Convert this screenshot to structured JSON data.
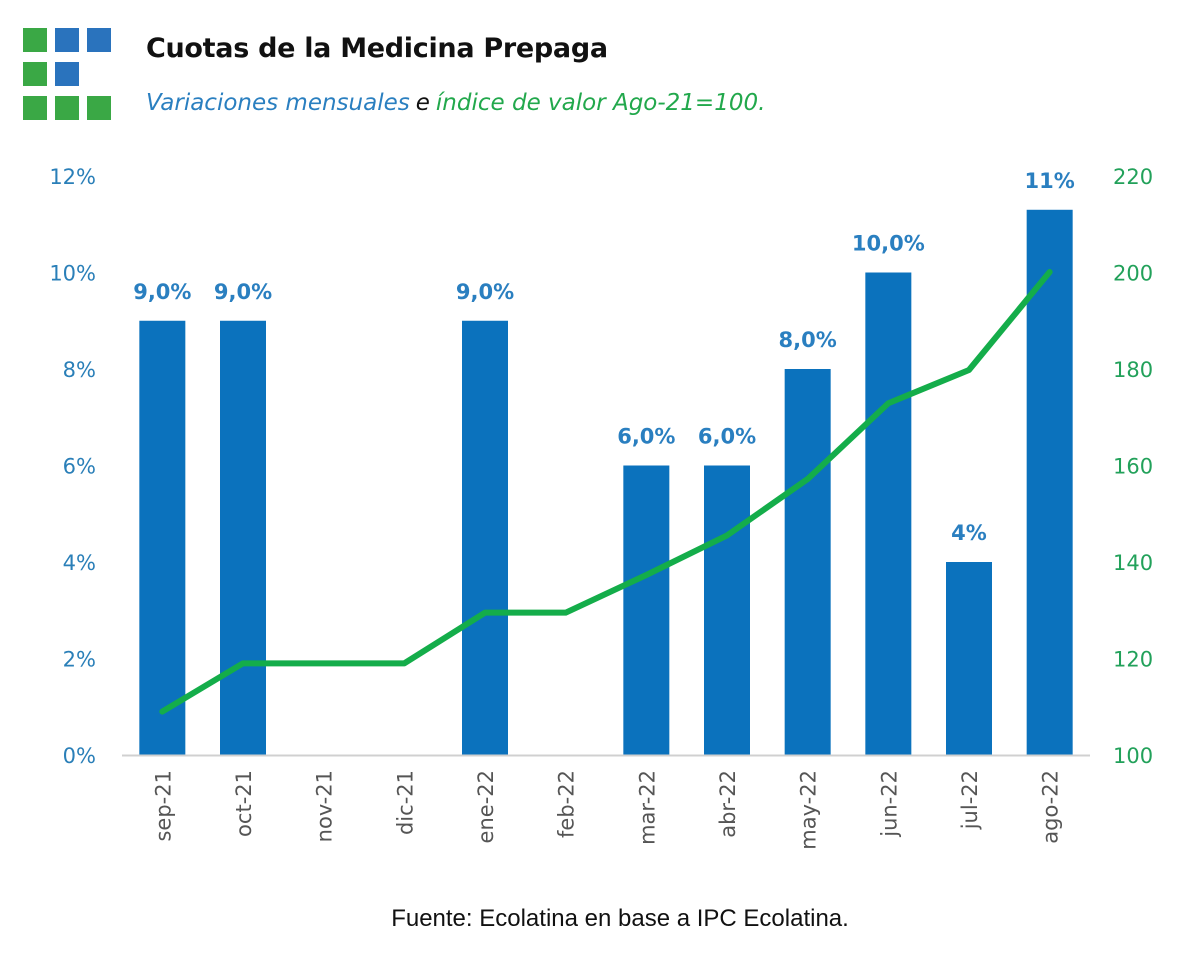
{
  "header": {
    "title": "Cuotas de la Medicina Prepaga",
    "subtitle_part1": "Variaciones mensuales",
    "subtitle_conj": "e",
    "subtitle_part2": "índice de valor Ago-21=100."
  },
  "logo": {
    "grid": [
      [
        "green",
        "blue",
        "blue"
      ],
      [
        "green",
        "blue",
        "none"
      ],
      [
        "green",
        "green",
        "green"
      ]
    ],
    "colors": {
      "green": "#3aa845",
      "blue": "#2a73bd"
    }
  },
  "footer": {
    "source": "Fuente: Ecolatina en base a IPC Ecolatina."
  },
  "colors": {
    "bar": "#0b72bd",
    "line": "#14ad4a",
    "left_axis_text": "#2a7fb8",
    "right_axis_text": "#22a15a",
    "bar_label": "#2a7fc0",
    "axis_line": "#d0d0d0",
    "x_tick_text": "#555555"
  },
  "chart_data": {
    "type": "bar",
    "title": "Cuotas de la Medicina Prepaga",
    "subtitle": "Variaciones mensuales e índice de valor Ago-21=100.",
    "categories": [
      "sep-21",
      "oct-21",
      "nov-21",
      "dic-21",
      "ene-22",
      "feb-22",
      "mar-22",
      "abr-22",
      "may-22",
      "jun-22",
      "jul-22",
      "ago-22"
    ],
    "series": [
      {
        "name": "Variación mensual (%)",
        "type": "bar",
        "axis": "left",
        "values": [
          9.0,
          9.0,
          0,
          0,
          9.0,
          0,
          6.0,
          6.0,
          8.0,
          10.0,
          4.0,
          11.3
        ],
        "labels": [
          "9,0%",
          "9,0%",
          "",
          "",
          "9,0%",
          "",
          "6,0%",
          "6,0%",
          "8,0%",
          "10,0%",
          "4%",
          "11%"
        ]
      },
      {
        "name": "Índice de valor (Ago-21=100)",
        "type": "line",
        "axis": "right",
        "values": [
          109,
          119,
          119,
          119,
          129.5,
          129.5,
          137.3,
          145.5,
          157.2,
          172.9,
          179.8,
          200.1
        ]
      }
    ],
    "left_axis": {
      "min": 0,
      "max": 12,
      "ticks": [
        0,
        2,
        4,
        6,
        8,
        10,
        12
      ],
      "tick_labels": [
        "0%",
        "2%",
        "4%",
        "6%",
        "8%",
        "10%",
        "12%"
      ]
    },
    "right_axis": {
      "min": 100,
      "max": 220,
      "ticks": [
        100,
        120,
        140,
        160,
        180,
        200,
        220
      ],
      "tick_labels": [
        "100",
        "120",
        "140",
        "160",
        "180",
        "200",
        "220"
      ]
    },
    "xlabel": "",
    "ylabel": "",
    "grid": false,
    "legend": "none"
  }
}
